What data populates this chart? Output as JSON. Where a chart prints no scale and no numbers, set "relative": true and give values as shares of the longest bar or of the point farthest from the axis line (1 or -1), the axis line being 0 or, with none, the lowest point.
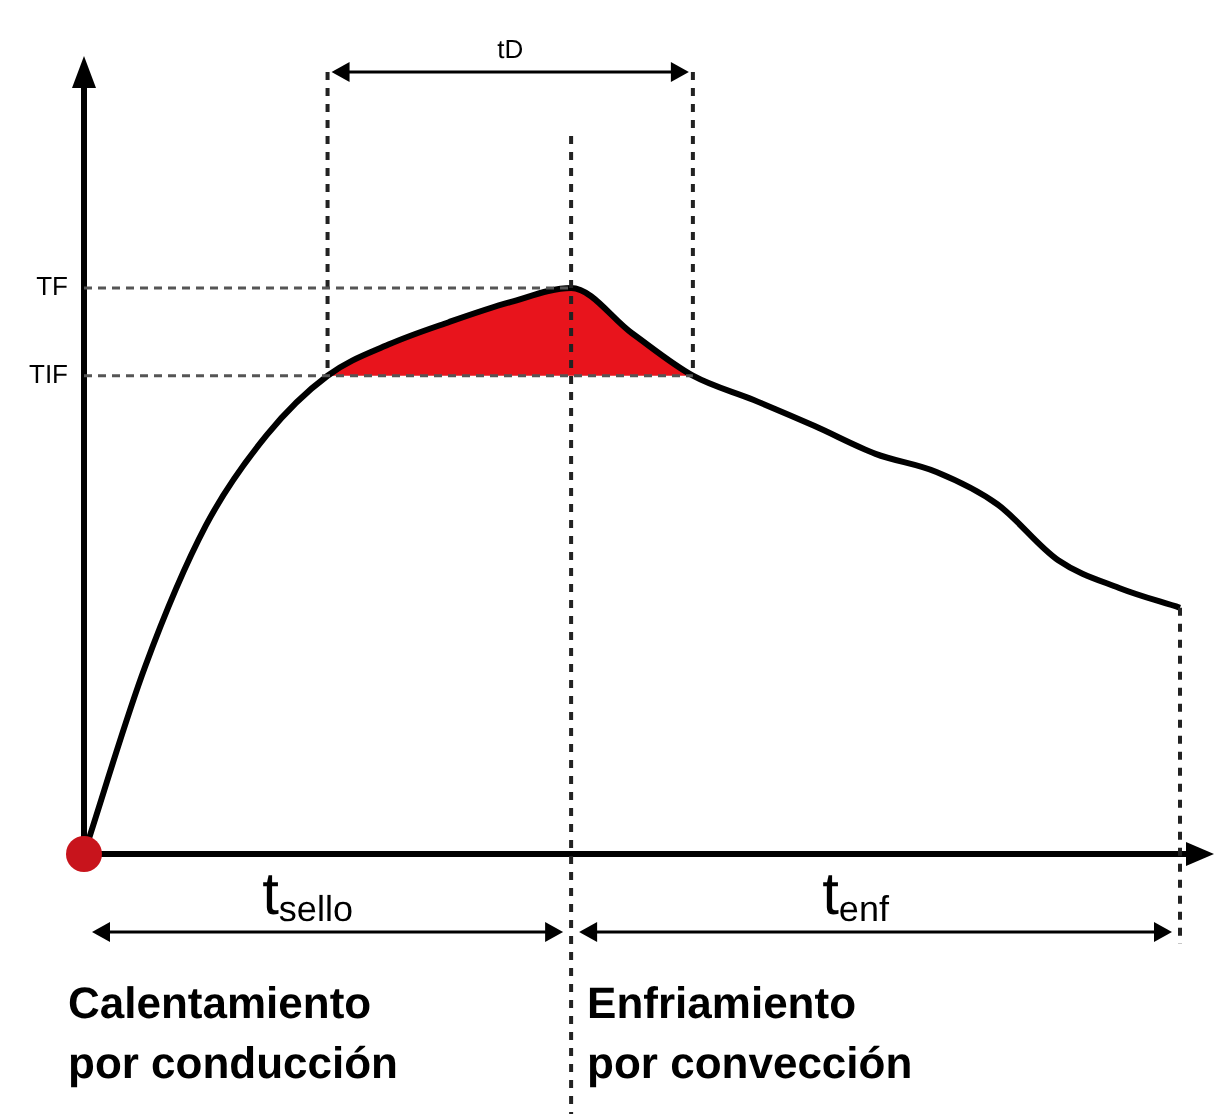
{
  "chart_data": {
    "type": "line",
    "relative": true,
    "tick_labels": false,
    "legend": false,
    "marker": "none",
    "line_style": "solid",
    "categories": [
      null,
      null,
      null,
      null,
      null,
      null,
      null,
      null,
      null,
      null,
      null,
      null,
      null,
      null,
      null,
      null,
      null,
      null,
      null
    ],
    "series": [
      {
        "color": "#000000",
        "values": [
          0,
          0.33,
          0.58,
          0.74,
          0.845,
          0.9,
          0.94,
          0.975,
          1,
          0.92,
          0.845,
          0.802,
          0.756,
          0.707,
          0.675,
          0.618,
          0.519,
          0.47,
          0.435
        ]
      },
      {
        "type": "area",
        "color": "#e8141c",
        "values": [
          null,
          null,
          null,
          null,
          0.845,
          0.9,
          0.94,
          0.975,
          1,
          0.92,
          0.845,
          null,
          null,
          null,
          null,
          null,
          null,
          null,
          null
        ]
      }
    ],
    "ref_lines": [
      {
        "axis": "y",
        "value": 1,
        "label": "TF"
      },
      {
        "axis": "y",
        "value": 0.845,
        "label": "TIF"
      }
    ],
    "annotations": [
      "tD",
      "t$_{sello}$",
      "t$_{enf}$",
      "Calentamiento por conducción",
      "Enfriamiento por convección"
    ]
  }
}
